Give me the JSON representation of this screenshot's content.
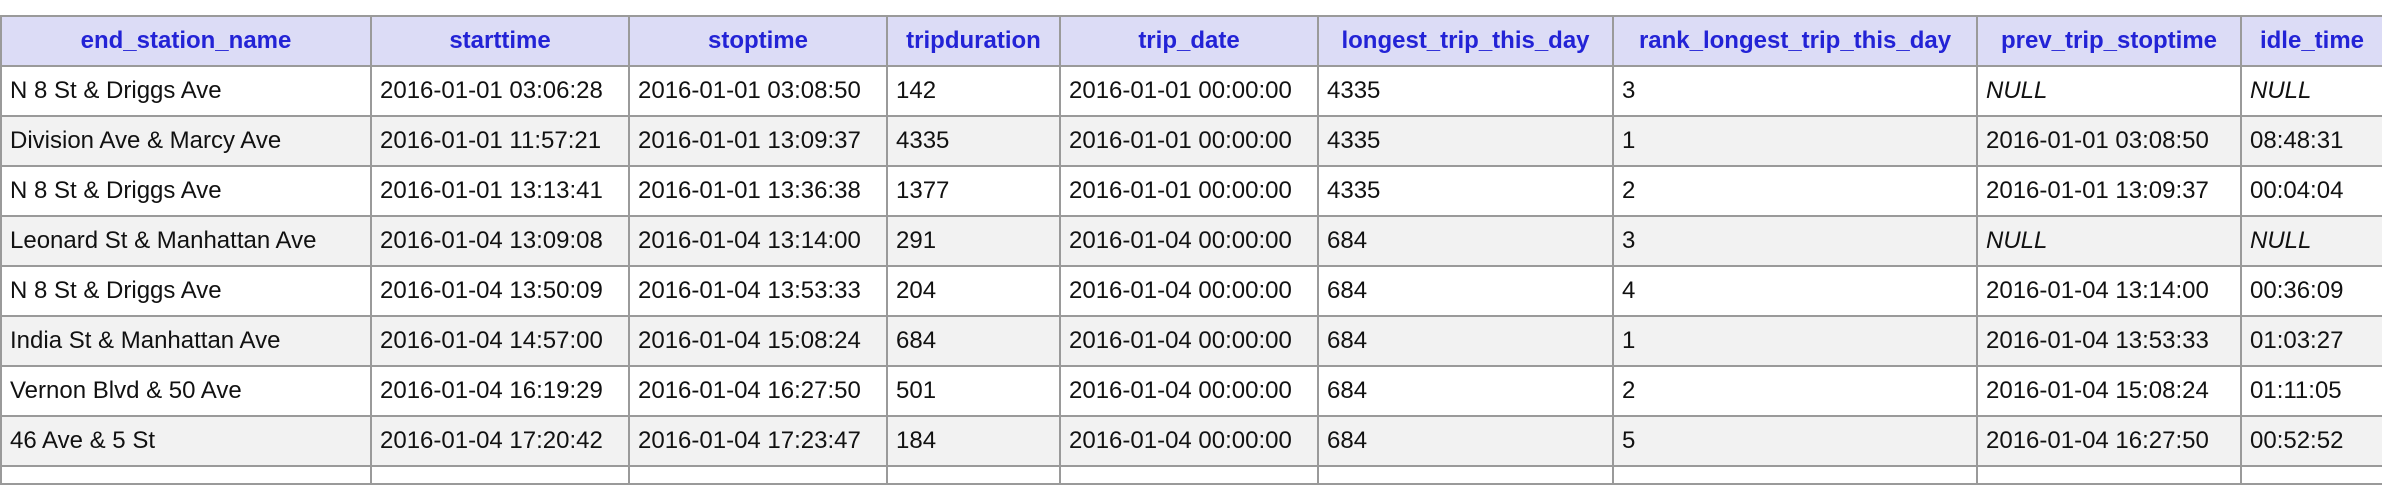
{
  "colors": {
    "header_bg": "#dcdcf6",
    "header_text": "#2323d6",
    "border": "#9a9a9a",
    "row_alt": "#f2f2f2"
  },
  "columns": [
    "end_station_name",
    "starttime",
    "stoptime",
    "tripduration",
    "trip_date",
    "longest_trip_this_day",
    "rank_longest_trip_this_day",
    "prev_trip_stoptime",
    "idle_time"
  ],
  "rows": [
    [
      "N 8 St & Driggs Ave",
      "2016-01-01 03:06:28",
      "2016-01-01 03:08:50",
      "142",
      "2016-01-01 00:00:00",
      "4335",
      "3",
      "NULL",
      "NULL"
    ],
    [
      "Division Ave & Marcy Ave",
      "2016-01-01 11:57:21",
      "2016-01-01 13:09:37",
      "4335",
      "2016-01-01 00:00:00",
      "4335",
      "1",
      "2016-01-01 03:08:50",
      "08:48:31"
    ],
    [
      "N 8 St & Driggs Ave",
      "2016-01-01 13:13:41",
      "2016-01-01 13:36:38",
      "1377",
      "2016-01-01 00:00:00",
      "4335",
      "2",
      "2016-01-01 13:09:37",
      "00:04:04"
    ],
    [
      "Leonard St & Manhattan Ave",
      "2016-01-04 13:09:08",
      "2016-01-04 13:14:00",
      "291",
      "2016-01-04 00:00:00",
      "684",
      "3",
      "NULL",
      "NULL"
    ],
    [
      "N 8 St & Driggs Ave",
      "2016-01-04 13:50:09",
      "2016-01-04 13:53:33",
      "204",
      "2016-01-04 00:00:00",
      "684",
      "4",
      "2016-01-04 13:14:00",
      "00:36:09"
    ],
    [
      "India St & Manhattan Ave",
      "2016-01-04 14:57:00",
      "2016-01-04 15:08:24",
      "684",
      "2016-01-04 00:00:00",
      "684",
      "1",
      "2016-01-04 13:53:33",
      "01:03:27"
    ],
    [
      "Vernon Blvd & 50 Ave",
      "2016-01-04 16:19:29",
      "2016-01-04 16:27:50",
      "501",
      "2016-01-04 00:00:00",
      "684",
      "2",
      "2016-01-04 15:08:24",
      "01:11:05"
    ],
    [
      "46 Ave & 5 St",
      "2016-01-04 17:20:42",
      "2016-01-04 17:23:47",
      "184",
      "2016-01-04 00:00:00",
      "684",
      "5",
      "2016-01-04 16:27:50",
      "00:52:52"
    ]
  ]
}
